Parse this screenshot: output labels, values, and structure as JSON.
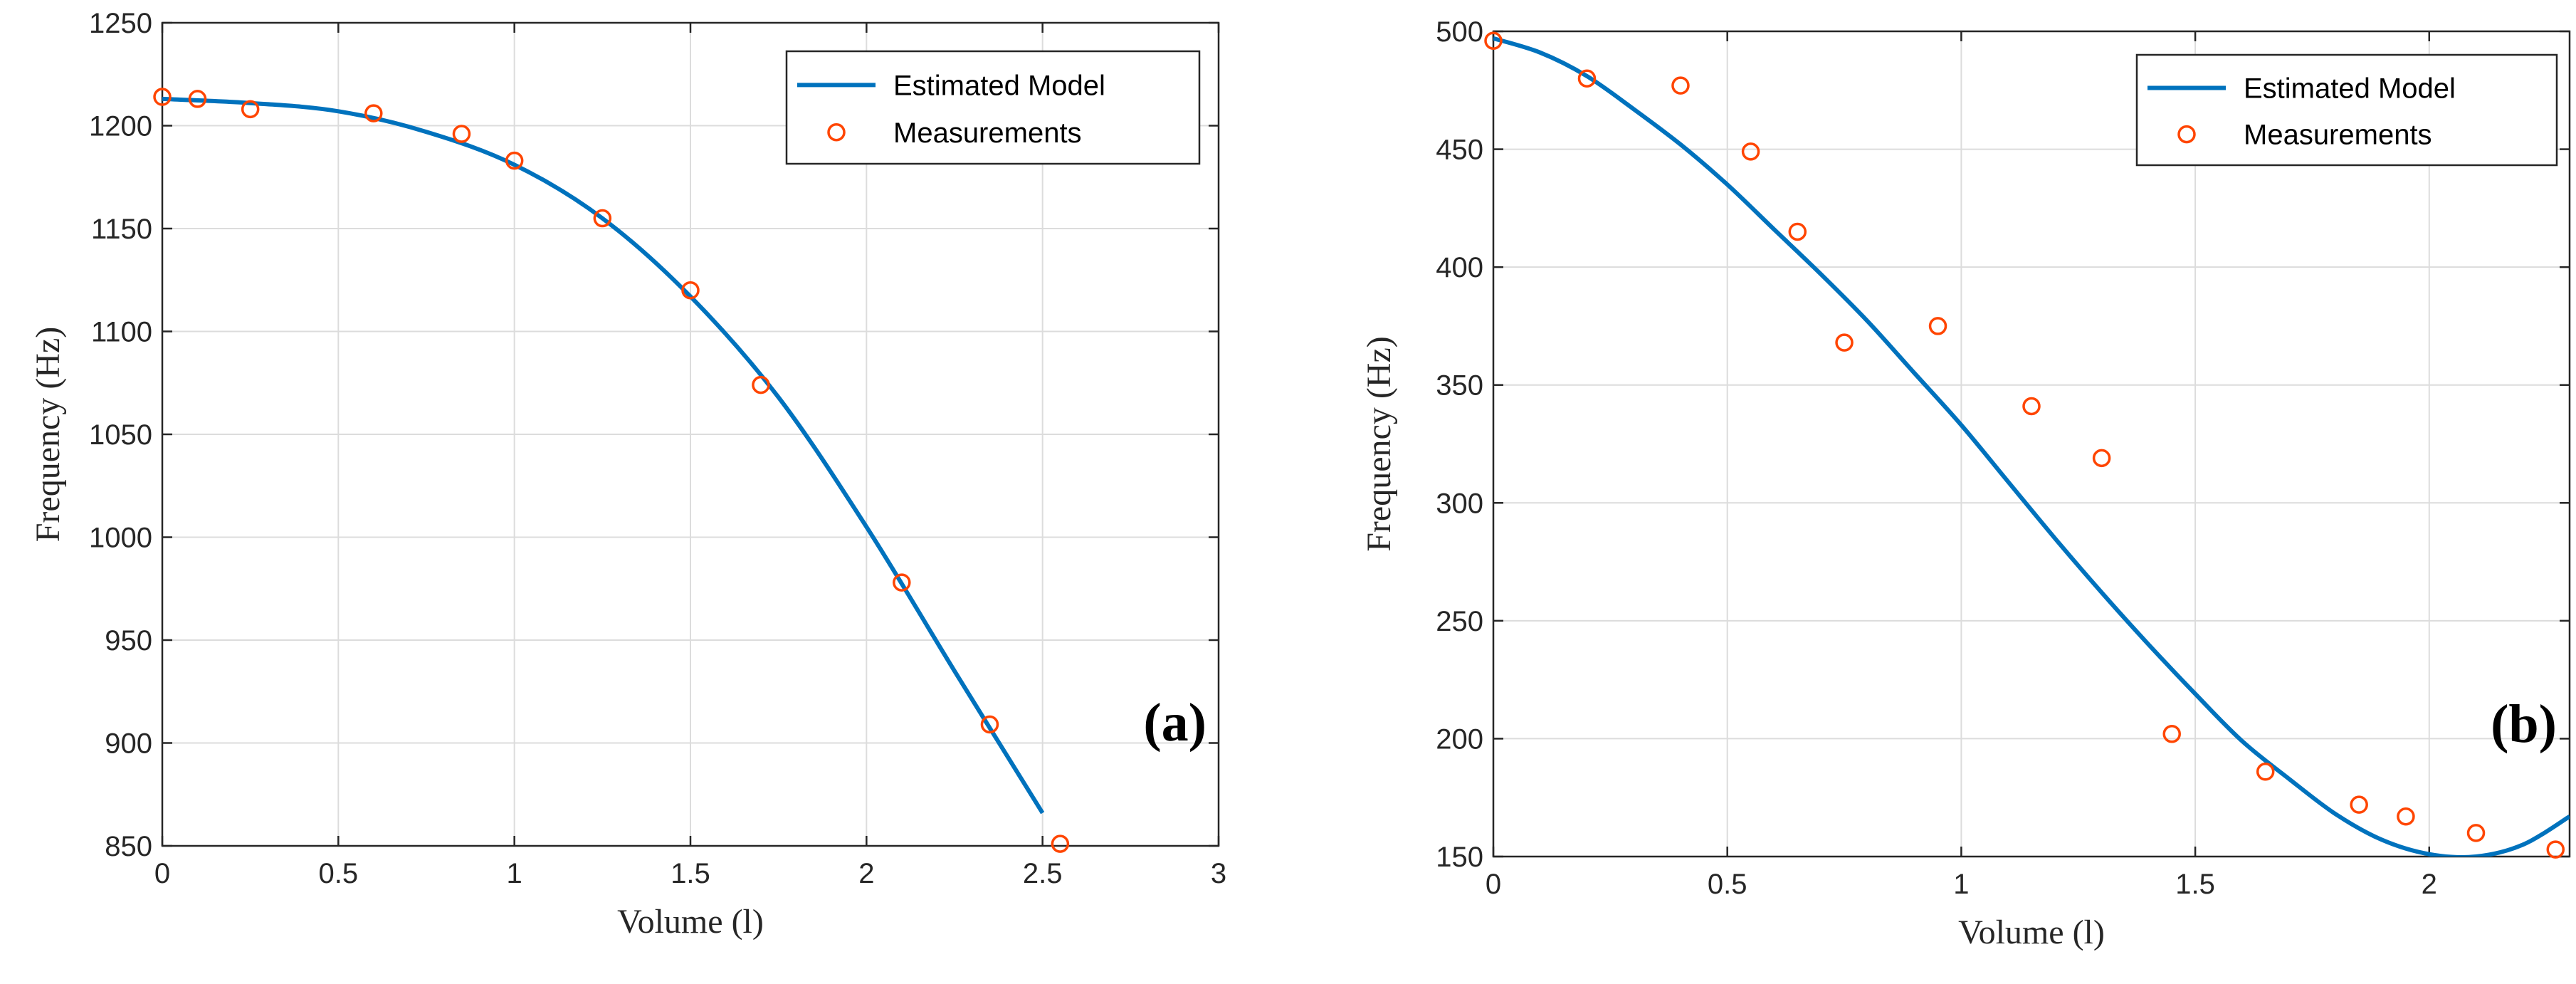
{
  "colors": {
    "model": "#0072BD",
    "measurements": "#FF4500"
  },
  "chart_data": [
    {
      "type": "line",
      "panel_label": "(a)",
      "xlabel": "Volume (l)",
      "ylabel": "Frequency (Hz)",
      "xlim": [
        0,
        3
      ],
      "ylim": [
        850,
        1250
      ],
      "xticks": [
        0,
        0.5,
        1,
        1.5,
        2,
        2.5,
        3
      ],
      "xtick_labels": [
        "0",
        "0.5",
        "1",
        "1.5",
        "2",
        "2.5",
        "3"
      ],
      "yticks": [
        850,
        900,
        950,
        1000,
        1050,
        1100,
        1150,
        1200,
        1250
      ],
      "ytick_labels": [
        "850",
        "900",
        "950",
        "1000",
        "1050",
        "1100",
        "1150",
        "1200",
        "1250"
      ],
      "grid": true,
      "legend_position": "top-right",
      "legend": [
        "Estimated Model",
        "Measurements"
      ],
      "series": [
        {
          "name": "Estimated Model",
          "style": "line",
          "x": [
            0,
            0.25,
            0.5,
            0.75,
            1.0,
            1.25,
            1.5,
            1.75,
            2.0,
            2.25,
            2.5
          ],
          "y": [
            1213,
            1211,
            1207,
            1197,
            1181,
            1155,
            1117,
            1068,
            1005,
            935,
            866
          ]
        },
        {
          "name": "Measurements",
          "style": "markers",
          "x": [
            0,
            0.1,
            0.25,
            0.6,
            0.85,
            1.0,
            1.25,
            1.5,
            1.7,
            2.1,
            2.35,
            2.55
          ],
          "y": [
            1214,
            1213,
            1208,
            1206,
            1196,
            1183,
            1155,
            1120,
            1074,
            978,
            909,
            851
          ]
        }
      ]
    },
    {
      "type": "line",
      "panel_label": "(b)",
      "xlabel": "Volume (l)",
      "ylabel": "Frequency (Hz)",
      "xlim": [
        0,
        2.3
      ],
      "ylim": [
        150,
        500
      ],
      "xticks": [
        0,
        0.5,
        1,
        1.5,
        2
      ],
      "xtick_labels": [
        "0",
        "0.5",
        "1",
        "1.5",
        "2"
      ],
      "yticks": [
        150,
        200,
        250,
        300,
        350,
        400,
        450,
        500
      ],
      "ytick_labels": [
        "150",
        "200",
        "250",
        "300",
        "350",
        "400",
        "450",
        "500"
      ],
      "grid": true,
      "legend_position": "top-right",
      "legend": [
        "Estimated Model",
        "Measurements"
      ],
      "series": [
        {
          "name": "Estimated Model",
          "style": "line",
          "x": [
            0,
            0.1,
            0.2,
            0.3,
            0.4,
            0.5,
            0.6,
            0.7,
            0.8,
            0.9,
            1.0,
            1.1,
            1.2,
            1.3,
            1.4,
            1.5,
            1.6,
            1.7,
            1.8,
            1.9,
            2.0,
            2.1,
            2.2,
            2.3
          ],
          "y": [
            497,
            491,
            481,
            467,
            452,
            435,
            416,
            397,
            377,
            355,
            333,
            309,
            285,
            262,
            240,
            219,
            199,
            183,
            168,
            157,
            151,
            150,
            155,
            167
          ]
        },
        {
          "name": "Measurements",
          "style": "markers",
          "x": [
            0,
            0.2,
            0.4,
            0.55,
            0.65,
            0.75,
            0.95,
            1.15,
            1.3,
            1.45,
            1.65,
            1.85,
            1.95,
            2.1,
            2.27
          ],
          "y": [
            496,
            480,
            477,
            449,
            415,
            368,
            375,
            341,
            319,
            202,
            186,
            172,
            167,
            160,
            153
          ]
        }
      ]
    }
  ]
}
